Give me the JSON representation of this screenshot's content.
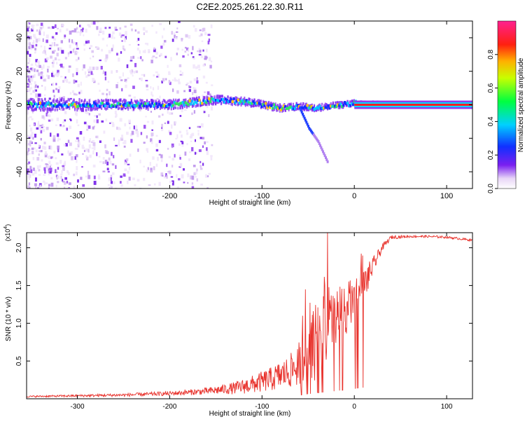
{
  "title": "C2E2.2025.261.22.30.R11",
  "colors": {
    "axis": "#000000",
    "snr_line": "#e8302a",
    "spectrogram_core": "#ff2020",
    "background": "#ffffff"
  },
  "chart_data": [
    {
      "type": "heatmap",
      "name": "spectrogram",
      "xlabel": "Height of straight line (km)",
      "ylabel": "Frequency (Hz)",
      "xlim": [
        -355,
        128
      ],
      "ylim": [
        -50,
        50
      ],
      "xticks": [
        -300,
        -200,
        -100,
        0,
        100
      ],
      "xtick_labels": [
        "-300",
        "-200",
        "-100",
        "0",
        "100"
      ],
      "yticks": [
        -40,
        -20,
        0,
        20,
        40
      ],
      "ytick_labels": [
        "-40",
        "-20",
        "0",
        "20",
        "40"
      ],
      "colorbar": {
        "label": "Normalized spectral amplitude",
        "range": [
          0,
          1
        ],
        "ticks": [
          0.0,
          0.2,
          0.4,
          0.6,
          0.8
        ],
        "tick_labels": [
          "0.0",
          "0.2",
          "0.4",
          "0.6",
          "0.8"
        ]
      },
      "ridge": {
        "x": [
          -355,
          -300,
          -250,
          -200,
          -150,
          -120,
          -100,
          -80,
          -60,
          -45,
          -30,
          -15,
          0,
          50,
          128
        ],
        "frequency": [
          0,
          0,
          0,
          0,
          3,
          2,
          0,
          -2,
          -1,
          -2,
          -1,
          0,
          1,
          0,
          0
        ]
      },
      "side_branch": {
        "x": [
          -60,
          -55,
          -50,
          -45,
          -40,
          -35,
          -30
        ],
        "frequency": [
          -2,
          -8,
          -14,
          -18,
          -22,
          -28,
          -34
        ]
      }
    },
    {
      "type": "line",
      "name": "snr",
      "xlabel": "Height of straight line (km)",
      "ylabel": "SNR (10 * v/v)",
      "y_multiplier_label": "(x10",
      "y_multiplier_exp": "4",
      "y_multiplier_close": ")",
      "xlim": [
        -355,
        128
      ],
      "ylim": [
        0,
        22000
      ],
      "xticks": [
        -300,
        -200,
        -100,
        0,
        100
      ],
      "xtick_labels": [
        "-300",
        "-200",
        "-100",
        "0",
        "100"
      ],
      "yticks": [
        5000,
        10000,
        15000,
        20000
      ],
      "ytick_labels": [
        "0.5",
        "1.0",
        "1.5",
        "2.0"
      ],
      "x": [
        -355,
        -300,
        -250,
        -200,
        -160,
        -130,
        -110,
        -90,
        -70,
        -60,
        -50,
        -40,
        -30,
        -20,
        -10,
        0,
        10,
        20,
        30,
        40,
        60,
        80,
        100,
        128
      ],
      "y": [
        300,
        400,
        500,
        700,
        1000,
        1400,
        1900,
        2600,
        3600,
        4600,
        6200,
        7800,
        8800,
        10200,
        11800,
        13200,
        14800,
        17500,
        20000,
        21400,
        21500,
        21500,
        21400,
        21000
      ],
      "noise_amplitude": [
        100,
        150,
        200,
        300,
        450,
        800,
        1200,
        1600,
        2200,
        3000,
        4000,
        5500,
        7000,
        4500,
        3500,
        3000,
        2500,
        1200,
        500,
        250,
        150,
        150,
        150,
        150
      ]
    }
  ]
}
